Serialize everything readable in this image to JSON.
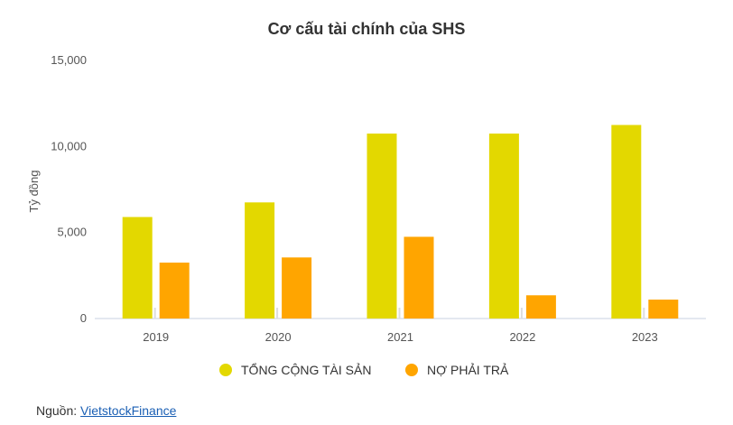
{
  "chart_data": {
    "type": "bar",
    "title": "Cơ cấu tài chính của SHS",
    "ylabel": "Tỷ đồng",
    "xlabel": "",
    "categories": [
      "2019",
      "2020",
      "2021",
      "2022",
      "2023"
    ],
    "series": [
      {
        "name": "TỔNG CỘNG TÀI SẢN",
        "color": "#e3d800",
        "values": [
          5900,
          6750,
          10750,
          10750,
          11250
        ]
      },
      {
        "name": "NỢ PHẢI TRẢ",
        "color": "#ffa500",
        "values": [
          3250,
          3550,
          4750,
          1350,
          1100
        ]
      }
    ],
    "ylim": [
      0,
      15000
    ],
    "yticks": [
      "0",
      "5,000",
      "10,000",
      "15,000"
    ],
    "ytick_values": [
      0,
      5000,
      10000,
      15000
    ],
    "grid": false,
    "legend_position": "bottom"
  },
  "source": {
    "label": "Nguồn:",
    "link_text": "VietstockFinance"
  }
}
